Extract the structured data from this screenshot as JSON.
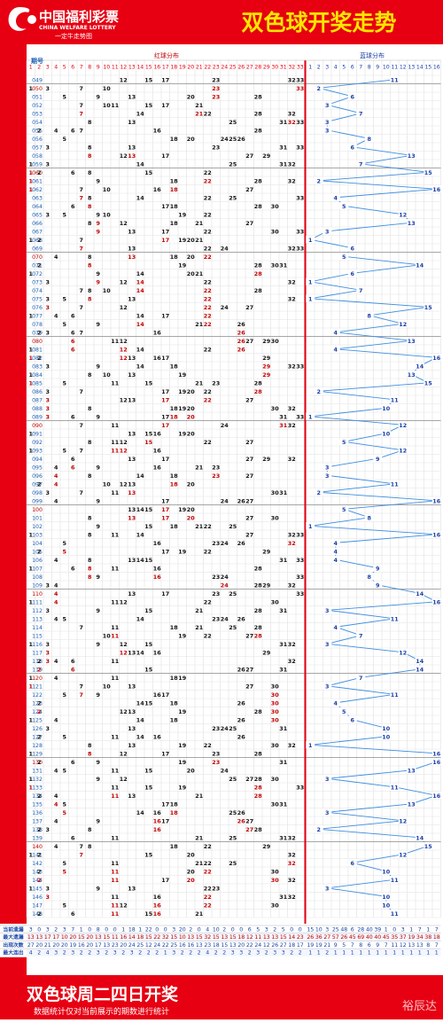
{
  "header": {
    "logo_cn": "中国福利彩票",
    "logo_en": "CHINA WELFARE LOTTERY",
    "logo_slogan": "一定牛走势图",
    "title": "双色球开奖走势"
  },
  "column_headers": {
    "issue": "期号",
    "red": "红球分布",
    "blue": "蓝球分布"
  },
  "red_range": 33,
  "blue_range": 16,
  "draws": [
    {
      "issue": "049",
      "red": [
        12,
        15,
        17,
        23,
        32,
        33
      ],
      "blue": 11
    },
    {
      "issue": "050",
      "red": [
        1,
        3,
        7,
        10,
        23,
        33
      ],
      "blue": 2
    },
    {
      "issue": "051",
      "red": [
        5,
        9,
        13,
        20,
        23,
        28
      ],
      "blue": 6
    },
    {
      "issue": "052",
      "red": [
        7,
        10,
        11,
        15,
        17,
        21
      ],
      "blue": 3
    },
    {
      "issue": "053",
      "red": [
        7,
        14,
        21,
        22,
        28,
        32
      ],
      "blue": 7
    },
    {
      "issue": "054",
      "red": [
        8,
        13,
        25,
        31,
        32,
        33
      ],
      "blue": 3
    },
    {
      "issue": "055",
      "red": [
        2,
        4,
        6,
        7,
        16,
        28
      ],
      "blue": 3
    },
    {
      "issue": "056",
      "red": [
        5,
        18,
        20,
        24,
        25,
        26
      ],
      "blue": 8
    },
    {
      "issue": "057",
      "red": [
        3,
        8,
        13,
        23,
        31,
        33
      ],
      "blue": 6
    },
    {
      "issue": "058",
      "red": [
        8,
        12,
        13,
        17,
        27,
        29
      ],
      "blue": 13
    },
    {
      "issue": "059",
      "red": [
        1,
        3,
        14,
        25,
        31,
        32
      ],
      "blue": 7
    },
    {
      "issue": "060",
      "red": [
        1,
        2,
        6,
        8,
        15,
        22
      ],
      "blue": 15
    },
    {
      "issue": "061",
      "red": [
        1,
        9,
        18,
        22,
        28,
        32
      ],
      "blue": 2
    },
    {
      "issue": "062",
      "red": [
        1,
        7,
        10,
        16,
        18,
        27
      ],
      "blue": 16
    },
    {
      "issue": "063",
      "red": [
        7,
        8,
        14,
        22,
        25,
        33
      ],
      "blue": 4
    },
    {
      "issue": "064",
      "red": [
        6,
        8,
        17,
        18,
        28,
        30
      ],
      "blue": 5
    },
    {
      "issue": "065",
      "red": [
        3,
        5,
        9,
        10,
        19,
        22
      ],
      "blue": 12
    },
    {
      "issue": "066",
      "red": [
        8,
        9,
        12,
        18,
        21,
        27
      ],
      "blue": 13
    },
    {
      "issue": "067",
      "red": [
        9,
        13,
        17,
        22,
        30,
        33
      ],
      "blue": 3
    },
    {
      "issue": "068",
      "red": [
        1,
        2,
        7,
        17,
        19,
        20,
        21
      ],
      "blue": 1
    },
    {
      "issue": "069",
      "red": [
        7,
        13,
        22,
        24,
        32,
        33
      ],
      "blue": 6
    },
    {
      "issue": "070",
      "red": [
        4,
        8,
        13,
        18,
        20,
        22
      ],
      "blue": 5
    },
    {
      "issue": "071",
      "red": [
        2,
        8,
        19,
        28,
        30,
        31
      ],
      "blue": 14
    },
    {
      "issue": "072",
      "red": [
        1,
        9,
        14,
        20,
        21,
        28
      ],
      "blue": 6
    },
    {
      "issue": "073",
      "red": [
        3,
        9,
        12,
        14,
        22,
        32
      ],
      "blue": 1
    },
    {
      "issue": "074",
      "red": [
        7,
        8,
        10,
        14,
        22,
        28
      ],
      "blue": 7
    },
    {
      "issue": "075",
      "red": [
        3,
        5,
        8,
        13,
        22,
        32
      ],
      "blue": 1
    },
    {
      "issue": "076",
      "red": [
        3,
        7,
        12,
        22,
        24,
        27
      ],
      "blue": 15
    },
    {
      "issue": "077",
      "red": [
        1,
        4,
        6,
        14,
        17,
        22
      ],
      "blue": 8
    },
    {
      "issue": "078",
      "red": [
        5,
        9,
        14,
        21,
        22,
        26
      ],
      "blue": 12
    },
    {
      "issue": "079",
      "red": [
        2,
        3,
        6,
        7,
        16,
        26
      ],
      "blue": 4
    },
    {
      "issue": "080",
      "red": [
        6,
        11,
        12,
        26,
        27,
        29,
        30
      ],
      "blue": 13
    },
    {
      "issue": "081",
      "red": [
        1,
        6,
        12,
        14,
        22,
        26
      ],
      "blue": 4
    },
    {
      "issue": "082",
      "red": [
        1,
        2,
        12,
        13,
        16,
        17,
        29
      ],
      "blue": 16
    },
    {
      "issue": "083",
      "red": [
        3,
        9,
        14,
        18,
        29,
        32,
        33
      ],
      "blue": 14
    },
    {
      "issue": "084",
      "red": [
        1,
        8,
        10,
        13,
        19,
        29
      ],
      "blue": 13
    },
    {
      "issue": "085",
      "red": [
        1,
        5,
        11,
        15,
        21,
        23,
        28
      ],
      "blue": 15
    },
    {
      "issue": "086",
      "red": [
        3,
        7,
        17,
        19,
        20,
        22,
        28
      ],
      "blue": 2
    },
    {
      "issue": "087",
      "red": [
        3,
        12,
        13,
        17,
        22,
        27
      ],
      "blue": 11
    },
    {
      "issue": "088",
      "red": [
        3,
        8,
        18,
        19,
        20,
        30,
        32
      ],
      "blue": 10
    },
    {
      "issue": "089",
      "red": [
        3,
        6,
        9,
        17,
        18,
        20,
        31,
        33
      ],
      "blue": 1
    },
    {
      "issue": "090",
      "red": [
        7,
        11,
        17,
        24,
        31,
        32
      ],
      "blue": 12
    },
    {
      "issue": "091",
      "red": [
        1,
        13,
        15,
        16,
        19,
        20
      ],
      "blue": 10
    },
    {
      "issue": "092",
      "red": [
        8,
        11,
        12,
        15,
        22,
        27
      ],
      "blue": 5
    },
    {
      "issue": "093",
      "red": [
        1,
        5,
        7,
        11,
        12,
        16
      ],
      "blue": 12
    },
    {
      "issue": "094",
      "red": [
        6,
        13,
        17,
        27,
        29,
        32
      ],
      "blue": 9
    },
    {
      "issue": "095",
      "red": [
        4,
        6,
        9,
        16,
        21,
        23
      ],
      "blue": 3
    },
    {
      "issue": "096",
      "red": [
        4,
        8,
        14,
        18,
        23,
        27
      ],
      "blue": 3
    },
    {
      "issue": "097",
      "red": [
        2,
        4,
        10,
        12,
        13,
        18,
        20
      ],
      "blue": 11
    },
    {
      "issue": "098",
      "red": [
        3,
        7,
        11,
        13,
        30,
        31
      ],
      "blue": 2
    },
    {
      "issue": "099",
      "red": [
        4,
        9,
        17,
        24,
        26,
        27
      ],
      "blue": 16
    },
    {
      "issue": "100",
      "red": [
        13,
        14,
        15,
        17,
        19,
        20
      ],
      "blue": 5
    },
    {
      "issue": "101",
      "red": [
        8,
        13,
        17,
        20,
        27,
        30
      ],
      "blue": 8
    },
    {
      "issue": "102",
      "red": [
        9,
        15,
        18,
        21,
        22,
        25
      ],
      "blue": 1
    },
    {
      "issue": "103",
      "red": [
        1,
        8,
        11,
        14,
        27,
        32,
        33
      ],
      "blue": 16
    },
    {
      "issue": "104",
      "red": [
        5,
        16,
        23,
        24,
        26,
        32
      ],
      "blue": 4
    },
    {
      "issue": "105",
      "red": [
        2,
        5,
        17,
        19,
        22,
        29
      ],
      "blue": 4
    },
    {
      "issue": "106",
      "red": [
        4,
        8,
        13,
        14,
        15,
        31,
        33
      ],
      "blue": 4
    },
    {
      "issue": "107",
      "red": [
        1,
        6,
        8,
        11,
        16,
        28
      ],
      "blue": 9
    },
    {
      "issue": "108",
      "red": [
        8,
        9,
        16,
        23,
        24,
        33
      ],
      "blue": 8
    },
    {
      "issue": "109",
      "red": [
        3,
        4,
        24,
        28,
        29,
        32
      ],
      "blue": 9
    },
    {
      "issue": "110",
      "red": [
        4,
        13,
        17,
        23,
        25,
        33
      ],
      "blue": 14
    },
    {
      "issue": "111",
      "red": [
        1,
        4,
        11,
        12,
        22,
        30
      ],
      "blue": 16
    },
    {
      "issue": "112",
      "red": [
        3,
        9,
        15,
        21,
        28,
        31
      ],
      "blue": 3
    },
    {
      "issue": "113",
      "red": [
        4,
        5,
        14,
        23,
        24,
        26
      ],
      "blue": 11
    },
    {
      "issue": "114",
      "red": [
        7,
        11,
        18,
        21,
        25,
        28
      ],
      "blue": 4
    },
    {
      "issue": "115",
      "red": [
        10,
        11,
        19,
        22,
        27,
        28
      ],
      "blue": 7
    },
    {
      "issue": "116",
      "red": [
        1,
        3,
        9,
        12,
        15,
        31,
        32
      ],
      "blue": 3
    },
    {
      "issue": "117",
      "red": [
        3,
        12,
        13,
        14,
        16,
        29
      ],
      "blue": 12
    },
    {
      "issue": "118",
      "red": [
        2,
        3,
        4,
        6,
        11,
        32
      ],
      "blue": 14
    },
    {
      "issue": "119",
      "red": [
        2,
        6,
        15,
        26,
        27,
        31
      ],
      "blue": 14
    },
    {
      "issue": "120",
      "red": [
        1,
        4,
        11,
        18,
        19
      ],
      "blue": 7
    },
    {
      "issue": "121",
      "red": [
        1,
        7,
        10,
        13,
        27,
        30
      ],
      "blue": 3
    },
    {
      "issue": "122",
      "red": [
        5,
        7,
        9,
        16,
        17,
        30
      ],
      "blue": 11
    },
    {
      "issue": "123",
      "red": [
        2,
        14,
        15,
        18,
        26,
        30
      ],
      "blue": 4
    },
    {
      "issue": "124",
      "red": [
        2,
        12,
        13,
        19,
        28,
        30
      ],
      "blue": 5
    },
    {
      "issue": "125",
      "red": [
        1,
        4,
        14,
        18,
        26,
        30
      ],
      "blue": 6
    },
    {
      "issue": "126",
      "red": [
        3,
        13,
        23,
        24,
        25,
        31
      ],
      "blue": 10
    },
    {
      "issue": "127",
      "red": [
        2,
        5,
        11,
        14,
        16,
        26
      ],
      "blue": 10
    },
    {
      "issue": "128",
      "red": [
        8,
        13,
        19,
        22,
        30,
        32
      ],
      "blue": 1
    },
    {
      "issue": "129",
      "red": [
        1,
        8,
        12,
        17,
        23,
        28
      ],
      "blue": 16
    },
    {
      "issue": "130",
      "red": [
        2,
        6,
        9,
        19,
        23,
        31
      ],
      "blue": 16
    },
    {
      "issue": "131",
      "red": [
        4,
        5,
        11,
        15,
        20,
        24
      ],
      "blue": 13
    },
    {
      "issue": "132",
      "red": [
        1,
        9,
        12,
        25,
        27,
        28,
        30
      ],
      "blue": 3
    },
    {
      "issue": "133",
      "red": [
        1,
        11,
        15,
        19,
        28,
        33
      ],
      "blue": 11
    },
    {
      "issue": "134",
      "red": [
        2,
        4,
        11,
        13,
        21,
        28
      ],
      "blue": 16
    },
    {
      "issue": "135",
      "red": [
        4,
        5,
        17,
        18,
        30,
        31
      ],
      "blue": 13
    },
    {
      "issue": "136",
      "red": [
        5,
        14,
        16,
        18,
        25,
        26
      ],
      "blue": 3
    },
    {
      "issue": "137",
      "red": [
        4,
        9,
        16,
        17,
        26,
        27
      ],
      "blue": 12
    },
    {
      "issue": "138",
      "red": [
        2,
        3,
        8,
        16,
        27,
        28
      ],
      "blue": 2
    },
    {
      "issue": "139",
      "red": [
        6,
        11,
        21,
        25,
        31,
        32
      ],
      "blue": 14
    },
    {
      "issue": "140",
      "red": [
        4,
        7,
        8,
        18,
        22,
        29
      ],
      "blue": 15
    },
    {
      "issue": "141",
      "red": [
        1,
        2,
        7,
        15,
        20,
        32
      ],
      "blue": 12
    },
    {
      "issue": "142",
      "red": [
        5,
        11,
        21,
        22,
        25,
        32
      ],
      "blue": 6
    },
    {
      "issue": "143",
      "red": [
        2,
        5,
        11,
        20,
        22,
        30
      ],
      "blue": 10
    },
    {
      "issue": "144",
      "red": [
        2,
        11,
        17,
        20,
        30,
        32
      ],
      "blue": 11
    },
    {
      "issue": "145",
      "red": [
        1,
        3,
        9,
        13,
        22,
        23
      ],
      "blue": 3
    },
    {
      "issue": "146",
      "red": [
        3,
        11,
        16,
        22,
        31,
        32
      ],
      "blue": 10
    },
    {
      "issue": "147",
      "red": [
        5,
        11,
        12,
        16,
        22,
        30
      ],
      "blue": 10
    },
    {
      "issue": "148",
      "red": [
        2,
        6,
        11,
        15,
        16,
        21
      ],
      "blue": 11
    }
  ],
  "stats": [
    {
      "label": "当前遗漏",
      "red": [
        3,
        0,
        3,
        2,
        3,
        7,
        1,
        0,
        8,
        0,
        0,
        1,
        18,
        1,
        22,
        0,
        0,
        3,
        20,
        2,
        0,
        4,
        10,
        2,
        0,
        0,
        6,
        5,
        3,
        2,
        5,
        0,
        0
      ],
      "blue": [
        15,
        10,
        3,
        25,
        48,
        6,
        28,
        40,
        39,
        1,
        0,
        3,
        1,
        7,
        1,
        7
      ]
    },
    {
      "label": "最大遗漏",
      "red": [
        13,
        13,
        17,
        17,
        10,
        20,
        15,
        20,
        13,
        15,
        11,
        16,
        14,
        18,
        15,
        22,
        32,
        15,
        10,
        13,
        15,
        32,
        15,
        13,
        15,
        18,
        12,
        11,
        13,
        13,
        15,
        14,
        23
      ],
      "blue": [
        26,
        36,
        27,
        57,
        26,
        45,
        69,
        40,
        40,
        45,
        35,
        37,
        19,
        34,
        38,
        18
      ]
    },
    {
      "label": "出现次数",
      "red": [
        27,
        20,
        21,
        20,
        20,
        19,
        16,
        20,
        17,
        13,
        23,
        20,
        24,
        25,
        12,
        24,
        22,
        25,
        16,
        16,
        13,
        23,
        18,
        15,
        13,
        20,
        22,
        24,
        12,
        26,
        27,
        18,
        17
      ],
      "blue": [
        19,
        19,
        21,
        9,
        5,
        7,
        8,
        6,
        9,
        7,
        11,
        12,
        13,
        13,
        8,
        7
      ]
    },
    {
      "label": "最大连出",
      "red": [
        4,
        2,
        4,
        3,
        2,
        3,
        2,
        2,
        3,
        2,
        3,
        2,
        3,
        2,
        2,
        2,
        1,
        3,
        2,
        2,
        2,
        4,
        2,
        2,
        3,
        3,
        2,
        3,
        2,
        3,
        3,
        2,
        2
      ],
      "blue": [
        1,
        1,
        2,
        1,
        1,
        1,
        1,
        1,
        1,
        1,
        1,
        1,
        1,
        1,
        1,
        1
      ]
    }
  ],
  "footer": {
    "line1": "双色球周二四日开奖",
    "line2": "数据统计仅对当前展示的期数进行统计",
    "watermark": "裕辰达"
  },
  "colors": {
    "frame_red": "#e60012",
    "title_yellow": "#ffe600",
    "red_ball": "#e60012",
    "blue_ball": "#1b3fa8",
    "blue_line": "#3e8ee0",
    "issue_text": "#1c5fb4",
    "hit_red": "#c00000",
    "stat_blue": "#1a47a8"
  }
}
